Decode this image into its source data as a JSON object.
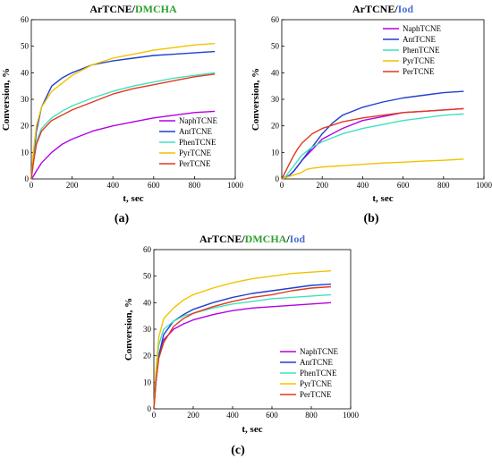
{
  "chart_data": [
    {
      "panel": "(a)",
      "type": "line",
      "title_parts": [
        {
          "text": "ArTCNE/",
          "color": "#000000"
        },
        {
          "text": "DMCHA",
          "color": "#2ca02c"
        }
      ],
      "xlabel": "t, sec",
      "ylabel": "Conversion, %",
      "xlim": [
        0,
        1000
      ],
      "ylim": [
        0,
        60
      ],
      "xticks": [
        0,
        200,
        400,
        600,
        800,
        1000
      ],
      "yticks": [
        0,
        10,
        20,
        30,
        40,
        50,
        60
      ],
      "grid": false,
      "legend": "bottom-right",
      "series": [
        {
          "name": "NaphTCNE",
          "color": "#b300e6",
          "x": [
            0,
            10,
            25,
            50,
            100,
            150,
            200,
            300,
            400,
            500,
            600,
            700,
            800,
            900
          ],
          "y": [
            0,
            1,
            3,
            6,
            10,
            13,
            15,
            18,
            20,
            21.5,
            23,
            24,
            25,
            25.5
          ]
        },
        {
          "name": "AntTCNE",
          "color": "#1f3fcf",
          "x": [
            0,
            10,
            25,
            50,
            100,
            150,
            200,
            300,
            400,
            500,
            600,
            700,
            800,
            900
          ],
          "y": [
            0,
            8,
            18,
            27,
            35,
            38,
            40,
            43,
            44.5,
            45.5,
            46.5,
            47,
            47.5,
            48
          ]
        },
        {
          "name": "PhenTCNE",
          "color": "#40e0c0",
          "x": [
            0,
            10,
            25,
            50,
            100,
            150,
            200,
            300,
            400,
            500,
            600,
            700,
            800,
            900
          ],
          "y": [
            0,
            6,
            14,
            19,
            23,
            25.5,
            27.5,
            30.5,
            33,
            35,
            36.5,
            38,
            39,
            40
          ]
        },
        {
          "name": "PyrTCNE",
          "color": "#f2c200",
          "x": [
            0,
            10,
            25,
            50,
            100,
            150,
            200,
            300,
            400,
            500,
            600,
            700,
            800,
            900
          ],
          "y": [
            0,
            10,
            20,
            27,
            33,
            36,
            39,
            43,
            45.5,
            47,
            48.5,
            49.5,
            50.5,
            51
          ]
        },
        {
          "name": "PerTCNE",
          "color": "#e03a1e",
          "x": [
            0,
            10,
            25,
            50,
            100,
            150,
            200,
            300,
            400,
            500,
            600,
            700,
            800,
            900
          ],
          "y": [
            0,
            6,
            13,
            18,
            22,
            24,
            26,
            29,
            32,
            34,
            35.5,
            37,
            38.5,
            39.5
          ]
        }
      ]
    },
    {
      "panel": "(b)",
      "type": "line",
      "title_parts": [
        {
          "text": "ArTCNE/",
          "color": "#000000"
        },
        {
          "text": "Iod",
          "color": "#4a6fd8"
        }
      ],
      "xlabel": "t, sec",
      "ylabel": "Conversion, %",
      "xlim": [
        0,
        1000
      ],
      "ylim": [
        0,
        60
      ],
      "xticks": [
        0,
        200,
        400,
        600,
        800,
        1000
      ],
      "yticks": [
        0,
        10,
        20,
        30,
        40,
        50,
        60
      ],
      "grid": false,
      "legend": "top-right",
      "series": [
        {
          "name": "NaphTCNE",
          "color": "#b300e6",
          "x": [
            0,
            20,
            40,
            60,
            80,
            100,
            150,
            200,
            300,
            400,
            500,
            600,
            700,
            800,
            900
          ],
          "y": [
            0,
            0.5,
            1.5,
            3,
            5,
            7,
            11,
            15,
            19,
            22,
            23.5,
            25,
            25.5,
            26,
            26.5
          ]
        },
        {
          "name": "AntTCNE",
          "color": "#1f3fcf",
          "x": [
            0,
            20,
            40,
            60,
            80,
            100,
            150,
            200,
            250,
            300,
            400,
            500,
            600,
            700,
            800,
            900
          ],
          "y": [
            0,
            0.5,
            1.5,
            3,
            5,
            7,
            12,
            17,
            21,
            24,
            27,
            29,
            30.5,
            31.5,
            32.5,
            33
          ]
        },
        {
          "name": "PhenTCNE",
          "color": "#40e0c0",
          "x": [
            0,
            20,
            40,
            60,
            80,
            100,
            150,
            200,
            300,
            400,
            500,
            600,
            700,
            800,
            900
          ],
          "y": [
            0,
            1,
            3,
            5,
            7,
            9,
            12,
            14,
            17,
            19,
            20.5,
            22,
            23,
            24,
            24.5
          ]
        },
        {
          "name": "PyrTCNE",
          "color": "#f2c200",
          "x": [
            0,
            20,
            40,
            60,
            80,
            100,
            120,
            150,
            200,
            300,
            400,
            500,
            600,
            700,
            800,
            900
          ],
          "y": [
            0,
            0.5,
            1,
            1.5,
            2,
            2.5,
            3.5,
            4,
            4.5,
            5,
            5.5,
            6,
            6.3,
            6.7,
            7,
            7.5
          ]
        },
        {
          "name": "PerTCNE",
          "color": "#e03a1e",
          "x": [
            0,
            20,
            40,
            60,
            80,
            100,
            150,
            200,
            300,
            400,
            500,
            600,
            700,
            800,
            900
          ],
          "y": [
            0,
            3,
            6,
            9,
            11.5,
            13.5,
            17,
            19,
            21.5,
            23,
            24,
            25,
            25.5,
            26,
            26.5
          ]
        }
      ]
    },
    {
      "panel": "(c)",
      "type": "line",
      "title_parts": [
        {
          "text": "ArTCNE/",
          "color": "#000000"
        },
        {
          "text": "DMCHA",
          "color": "#2ca02c"
        },
        {
          "text": "/",
          "color": "#000000"
        },
        {
          "text": "Iod",
          "color": "#4a6fd8"
        }
      ],
      "xlabel": "t, sec",
      "ylabel": "Conversion, %",
      "xlim": [
        0,
        1000
      ],
      "ylim": [
        0,
        60
      ],
      "xticks": [
        0,
        200,
        400,
        600,
        800,
        1000
      ],
      "yticks": [
        0,
        10,
        20,
        30,
        40,
        50,
        60
      ],
      "grid": false,
      "legend": "bottom-right",
      "series": [
        {
          "name": "NaphTCNE",
          "color": "#b300e6",
          "x": [
            0,
            10,
            25,
            50,
            100,
            150,
            200,
            300,
            400,
            500,
            600,
            700,
            800,
            900
          ],
          "y": [
            0,
            10,
            20,
            26,
            30,
            32,
            33.5,
            35.5,
            37,
            38,
            38.5,
            39,
            39.5,
            40
          ]
        },
        {
          "name": "AntTCNE",
          "color": "#1f3fcf",
          "x": [
            0,
            10,
            25,
            50,
            100,
            150,
            200,
            300,
            400,
            500,
            600,
            700,
            800,
            900
          ],
          "y": [
            0,
            10,
            20,
            28,
            33,
            35.5,
            37.5,
            40,
            42,
            43.5,
            44.5,
            45.5,
            46.5,
            47
          ]
        },
        {
          "name": "PhenTCNE",
          "color": "#40e0c0",
          "x": [
            0,
            10,
            25,
            50,
            100,
            150,
            200,
            300,
            400,
            500,
            600,
            700,
            800,
            900
          ],
          "y": [
            0,
            12,
            24,
            30,
            33,
            35,
            36,
            38,
            39.5,
            40.5,
            41.5,
            42,
            42.5,
            43
          ]
        },
        {
          "name": "PyrTCNE",
          "color": "#f2c200",
          "x": [
            0,
            10,
            25,
            50,
            100,
            150,
            200,
            300,
            400,
            500,
            600,
            700,
            800,
            900
          ],
          "y": [
            0,
            14,
            27,
            34,
            38,
            41,
            43,
            45.5,
            47.5,
            49,
            50,
            51,
            51.5,
            52
          ]
        },
        {
          "name": "PerTCNE",
          "color": "#e03a1e",
          "x": [
            0,
            10,
            25,
            50,
            100,
            150,
            200,
            300,
            400,
            500,
            600,
            700,
            800,
            900
          ],
          "y": [
            0,
            10,
            19,
            25,
            31,
            34,
            36,
            38.5,
            40.5,
            42,
            43,
            44.5,
            45.5,
            46
          ]
        }
      ]
    }
  ]
}
